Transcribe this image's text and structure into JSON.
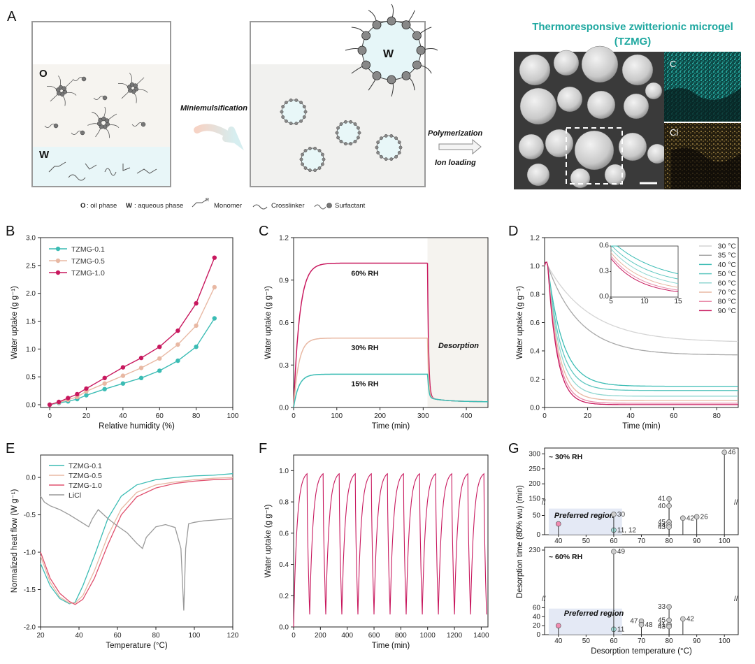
{
  "panel_letters": {
    "A": "A",
    "B": "B",
    "C": "C",
    "D": "D",
    "E": "E",
    "F": "F",
    "G": "G"
  },
  "panelA": {
    "oil_label": "O",
    "water_label": "W",
    "droplet_label": "W",
    "step1": "Miniemulsification",
    "step2": "Polymerization",
    "step3": "Ion loading",
    "title_line1": "Thermoresponsive zwitterionic microgel",
    "title_line2": "(TZMG)",
    "map_c": "C",
    "map_cl": "Cl",
    "legend": {
      "o_key": "O",
      "o_text": ": oil phase",
      "w_key": "W",
      "w_text": ": aqueous phase",
      "monomer": "Monomer",
      "crosslinker": "Crosslinker",
      "surfactant": "Surfactant",
      "monomer_r": "R"
    },
    "colors": {
      "teal": "#1fa8a0",
      "cl_map": "#c9a657"
    }
  },
  "chart_data": [
    {
      "panel": "B",
      "type": "line",
      "xlabel": "Relative humidity (%)",
      "ylabel": "Water uptake (g g⁻¹)",
      "xlim": [
        -5,
        100
      ],
      "ylim": [
        -0.05,
        3.0
      ],
      "xticks": [
        0,
        20,
        40,
        60,
        80,
        100
      ],
      "yticks": [
        0.0,
        0.5,
        1.0,
        1.5,
        2.0,
        2.5,
        3.0
      ],
      "legend_loc": "top-left",
      "x": [
        0,
        5,
        10,
        15,
        20,
        30,
        40,
        50,
        60,
        70,
        80,
        90
      ],
      "series": [
        {
          "name": "TZMG-0.1",
          "color": "#3bbcb4",
          "values": [
            0,
            0.03,
            0.06,
            0.1,
            0.17,
            0.28,
            0.38,
            0.48,
            0.61,
            0.79,
            1.04,
            1.55
          ]
        },
        {
          "name": "TZMG-0.5",
          "color": "#e8b8a3",
          "values": [
            0,
            0.04,
            0.09,
            0.14,
            0.24,
            0.38,
            0.52,
            0.66,
            0.83,
            1.08,
            1.42,
            2.11
          ]
        },
        {
          "name": "TZMG-1.0",
          "color": "#c8185e",
          "values": [
            0,
            0.05,
            0.12,
            0.19,
            0.29,
            0.48,
            0.67,
            0.84,
            1.04,
            1.33,
            1.82,
            2.64
          ]
        }
      ]
    },
    {
      "panel": "C",
      "type": "line",
      "xlabel": "Time (min)",
      "ylabel": "Water uptake (g g⁻¹)",
      "xlim": [
        0,
        450
      ],
      "ylim": [
        0,
        1.2
      ],
      "xticks": [
        0,
        100,
        200,
        300,
        400
      ],
      "yticks": [
        0.0,
        0.3,
        0.6,
        0.9,
        1.2
      ],
      "desorption_start": 310,
      "series": [
        {
          "name": "60% RH",
          "color": "#c8185e",
          "plateau": 1.02,
          "tau": 14
        },
        {
          "name": "30% RH",
          "color": "#e8b8a3",
          "plateau": 0.49,
          "tau": 12
        },
        {
          "name": "15% RH",
          "color": "#3bbcb4",
          "plateau": 0.235,
          "tau": 12
        }
      ],
      "annotations": [
        "60% RH",
        "30% RH",
        "15% RH",
        "Desorption"
      ]
    },
    {
      "panel": "D",
      "type": "line",
      "xlabel": "Time (min)",
      "ylabel": "Water uptake (g g⁻¹)",
      "xlim": [
        0,
        90
      ],
      "ylim": [
        0,
        1.2
      ],
      "xticks": [
        0,
        20,
        40,
        60,
        80
      ],
      "yticks": [
        0.0,
        0.2,
        0.4,
        0.6,
        0.8,
        1.0,
        1.2
      ],
      "legend_loc": "top-right",
      "series": [
        {
          "name": "30 °C",
          "color": "#d4d4d4",
          "final": 0.46,
          "tau": 20
        },
        {
          "name": "35 °C",
          "color": "#a8a8a8",
          "final": 0.37,
          "tau": 15
        },
        {
          "name": "40 °C",
          "color": "#3bbcb4",
          "final": 0.15,
          "tau": 7
        },
        {
          "name": "50 °C",
          "color": "#5fc7c0",
          "final": 0.12,
          "tau": 6
        },
        {
          "name": "60 °C",
          "color": "#8fd6d0",
          "final": 0.08,
          "tau": 5.5
        },
        {
          "name": "70 °C",
          "color": "#e8b8a3",
          "final": 0.05,
          "tau": 5
        },
        {
          "name": "80 °C",
          "color": "#e88aa8",
          "final": 0.03,
          "tau": 4.6
        },
        {
          "name": "90 °C",
          "color": "#c8185e",
          "final": 0.02,
          "tau": 4.3
        }
      ],
      "inset": {
        "xlim": [
          5,
          15
        ],
        "ylim": [
          0,
          0.6
        ],
        "xticks": [
          5,
          10,
          15
        ],
        "yticks": [
          0.0,
          0.3,
          0.6
        ]
      }
    },
    {
      "panel": "E",
      "type": "line",
      "xlabel": "Temperature (°C)",
      "ylabel": "Normalized heat flow (W g⁻¹)",
      "xlim": [
        20,
        120
      ],
      "ylim": [
        -2.0,
        0.3
      ],
      "xticks": [
        20,
        40,
        60,
        80,
        100,
        120
      ],
      "yticks": [
        -2.0,
        -1.5,
        -1.0,
        -0.5,
        0.0
      ],
      "legend_loc": "top-left",
      "series": [
        {
          "name": "TZMG-0.1",
          "color": "#3bbcb4",
          "x": [
            20,
            25,
            30,
            35,
            38,
            42,
            48,
            55,
            62,
            70,
            80,
            90,
            100,
            110,
            120
          ],
          "values": [
            -1.15,
            -1.45,
            -1.62,
            -1.69,
            -1.67,
            -1.45,
            -1.05,
            -0.55,
            -0.25,
            -0.1,
            -0.03,
            0.0,
            0.02,
            0.03,
            0.05
          ]
        },
        {
          "name": "TZMG-0.5",
          "color": "#e8b8a3",
          "x": [
            20,
            25,
            30,
            35,
            38,
            42,
            48,
            55,
            62,
            70,
            80,
            90,
            100,
            110,
            120
          ],
          "values": [
            -1.05,
            -1.4,
            -1.6,
            -1.68,
            -1.68,
            -1.58,
            -1.25,
            -0.78,
            -0.42,
            -0.2,
            -0.1,
            -0.06,
            -0.03,
            -0.01,
            0.0
          ]
        },
        {
          "name": "TZMG-1.0",
          "color": "#e0506e",
          "x": [
            20,
            25,
            30,
            35,
            38,
            42,
            48,
            55,
            62,
            70,
            80,
            90,
            100,
            110,
            120
          ],
          "values": [
            -1.0,
            -1.35,
            -1.55,
            -1.66,
            -1.7,
            -1.63,
            -1.35,
            -0.9,
            -0.5,
            -0.26,
            -0.14,
            -0.08,
            -0.05,
            -0.03,
            -0.02
          ]
        },
        {
          "name": "LiCl",
          "color": "#999999",
          "x": [
            20,
            22,
            25,
            30,
            35,
            40,
            45,
            47,
            50,
            55,
            60,
            65,
            70,
            73,
            75,
            80,
            85,
            90,
            93,
            94.5,
            95.5,
            97,
            100,
            105,
            110,
            120
          ],
          "values": [
            -0.25,
            -0.33,
            -0.38,
            -0.43,
            -0.5,
            -0.58,
            -0.66,
            -0.55,
            -0.43,
            -0.55,
            -0.65,
            -0.74,
            -0.88,
            -0.95,
            -0.8,
            -0.66,
            -0.63,
            -0.67,
            -0.95,
            -1.78,
            -0.95,
            -0.62,
            -0.6,
            -0.58,
            -0.57,
            -0.55
          ]
        }
      ]
    },
    {
      "panel": "F",
      "type": "line",
      "xlabel": "Time (min)",
      "ylabel": "Water uptake (g g⁻¹)",
      "xlim": [
        0,
        1450
      ],
      "ylim": [
        0,
        1.1
      ],
      "xticks": [
        0,
        200,
        400,
        600,
        800,
        1000,
        1200,
        1400
      ],
      "yticks": [
        0.0,
        0.2,
        0.4,
        0.6,
        0.8,
        1.0
      ],
      "cycles": 12,
      "period": 120,
      "first_peak": 100,
      "max": 0.98,
      "min": 0.08,
      "color": "#c8185e"
    },
    {
      "panel": "G",
      "type": "scatter",
      "xlabel": "Desorption temperature (°C)",
      "ylabel": "Desorption time (80% wu) (min)",
      "xlim": [
        35,
        105
      ],
      "xticks": [
        40,
        50,
        60,
        70,
        80,
        90,
        100
      ],
      "subplots": [
        {
          "title": "~ 30% RH",
          "region_label": "Preferred region",
          "yticks_low": [
            0,
            50
          ],
          "yticks_high": [
            150,
            200,
            250,
            300
          ],
          "points": [
            {
              "x": 40,
              "y": 28,
              "label": "",
              "color": "#f08bb0"
            },
            {
              "x": 60,
              "y": 12,
              "label": "11, 12",
              "color": "#a6e3df"
            },
            {
              "x": 60,
              "y": 53,
              "label": "30",
              "color": "#cccccc"
            },
            {
              "x": 80,
              "y": 150,
              "label": "41",
              "color": "#cccccc"
            },
            {
              "x": 80,
              "y": 75,
              "label": "40",
              "color": "#cccccc"
            },
            {
              "x": 80,
              "y": 33,
              "label": "45",
              "color": "#cccccc"
            },
            {
              "x": 80,
              "y": 25,
              "label": "44",
              "color": "#cccccc"
            },
            {
              "x": 80,
              "y": 20,
              "label": "43",
              "color": "#cccccc"
            },
            {
              "x": 85,
              "y": 43,
              "label": "42",
              "color": "#cccccc"
            },
            {
              "x": 90,
              "y": 90,
              "label": "26",
              "color": "#cccccc"
            },
            {
              "x": 100,
              "y": 305,
              "label": "46",
              "color": "#cccccc"
            }
          ]
        },
        {
          "title": "~ 60% RH",
          "region_label": "Preferred region",
          "yticks_low": [
            0,
            20,
            40,
            60
          ],
          "yticks_high": [
            230
          ],
          "points": [
            {
              "x": 40,
              "y": 20,
              "label": "",
              "color": "#f08bb0"
            },
            {
              "x": 60,
              "y": 12,
              "label": "11",
              "color": "#a6e3df"
            },
            {
              "x": 60,
              "y": 225,
              "label": "49",
              "color": "#cccccc"
            },
            {
              "x": 70,
              "y": 30,
              "label": "47",
              "color": "#cccccc"
            },
            {
              "x": 70,
              "y": 22,
              "label": "48",
              "color": "#cccccc"
            },
            {
              "x": 80,
              "y": 62,
              "label": "33",
              "color": "#cccccc"
            },
            {
              "x": 80,
              "y": 32,
              "label": "45",
              "color": "#cccccc"
            },
            {
              "x": 80,
              "y": 22,
              "label": "41",
              "color": "#cccccc"
            },
            {
              "x": 80,
              "y": 18,
              "label": "43",
              "color": "#cccccc"
            },
            {
              "x": 85,
              "y": 35,
              "label": "42",
              "color": "#cccccc"
            }
          ]
        }
      ]
    }
  ]
}
